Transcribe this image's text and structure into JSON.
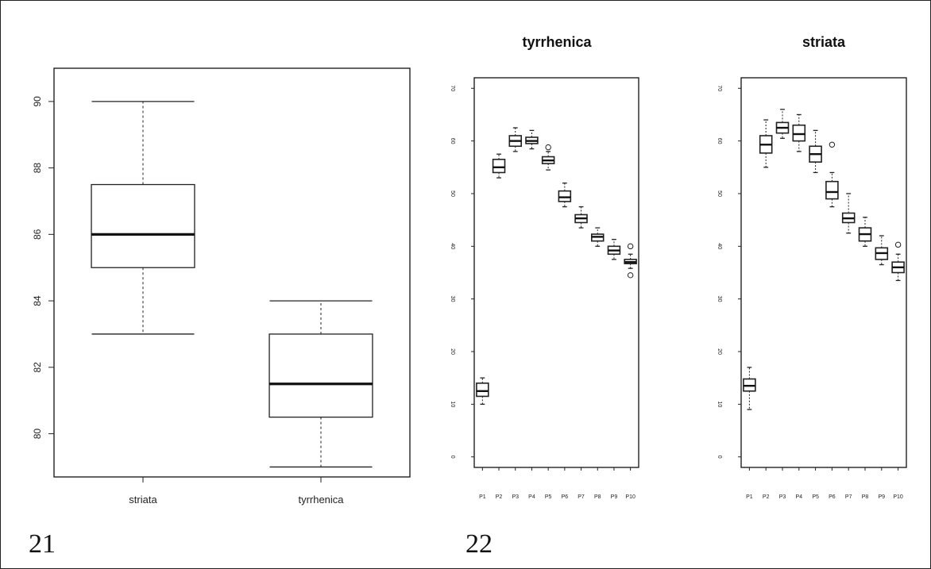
{
  "panel_labels": [
    "21",
    "22"
  ],
  "chart_data": [
    {
      "type": "boxplot",
      "title": "",
      "xlabel": "",
      "ylabel": "",
      "categories": [
        "striata",
        "tyrrhenica"
      ],
      "ylim": [
        78.7,
        91.0
      ],
      "yticks": [
        80,
        82,
        84,
        86,
        88,
        90
      ],
      "boxes": [
        {
          "name": "striata",
          "min": 83,
          "q1": 85,
          "median": 86,
          "q3": 87.5,
          "max": 90,
          "outliers": []
        },
        {
          "name": "tyrrhenica",
          "min": 79,
          "q1": 80.5,
          "median": 81.5,
          "q3": 83,
          "max": 84,
          "outliers": []
        }
      ]
    },
    {
      "type": "boxplot",
      "title": "tyrrhenica",
      "xlabel": "",
      "ylabel": "",
      "categories": [
        "P1",
        "P2",
        "P3",
        "P4",
        "P5",
        "P6",
        "P7",
        "P8",
        "P9",
        "P10"
      ],
      "ylim": [
        -2,
        72
      ],
      "yticks": [
        "0",
        "10",
        "20",
        "30",
        "40",
        "50",
        "60",
        "70"
      ],
      "boxes": [
        {
          "name": "P1",
          "min": 10,
          "q1": 11.5,
          "median": 12.5,
          "q3": 14,
          "max": 15,
          "outliers": []
        },
        {
          "name": "P2",
          "min": 53,
          "q1": 54,
          "median": 55,
          "q3": 56.5,
          "max": 57.5,
          "outliers": []
        },
        {
          "name": "P3",
          "min": 58,
          "q1": 59,
          "median": 60,
          "q3": 61,
          "max": 62.5,
          "outliers": []
        },
        {
          "name": "P4",
          "min": 58.5,
          "q1": 59.5,
          "median": 60,
          "q3": 60.7,
          "max": 62,
          "outliers": []
        },
        {
          "name": "P5",
          "min": 54.5,
          "q1": 55.7,
          "median": 56.3,
          "q3": 57,
          "max": 58,
          "outliers": [
            58.8
          ]
        },
        {
          "name": "P6",
          "min": 47.5,
          "q1": 48.5,
          "median": 49.3,
          "q3": 50.5,
          "max": 52,
          "outliers": []
        },
        {
          "name": "P7",
          "min": 43.5,
          "q1": 44.5,
          "median": 45.3,
          "q3": 46,
          "max": 47.5,
          "outliers": []
        },
        {
          "name": "P8",
          "min": 40,
          "q1": 41,
          "median": 41.8,
          "q3": 42.3,
          "max": 43.5,
          "outliers": []
        },
        {
          "name": "P9",
          "min": 37.5,
          "q1": 38.5,
          "median": 39.2,
          "q3": 40,
          "max": 41.3,
          "outliers": []
        },
        {
          "name": "P10",
          "min": 35.8,
          "q1": 36.7,
          "median": 37,
          "q3": 37.5,
          "max": 38.5,
          "outliers": [
            40,
            34.5
          ]
        }
      ]
    },
    {
      "type": "boxplot",
      "title": "striata",
      "xlabel": "",
      "ylabel": "",
      "categories": [
        "P1",
        "P2",
        "P3",
        "P4",
        "P5",
        "P6",
        "P7",
        "P8",
        "P9",
        "P10"
      ],
      "ylim": [
        -2,
        72
      ],
      "yticks": [
        "0",
        "10",
        "20",
        "30",
        "40",
        "50",
        "60",
        "70"
      ],
      "boxes": [
        {
          "name": "P1",
          "min": 9,
          "q1": 12.5,
          "median": 13.5,
          "q3": 14.8,
          "max": 17,
          "outliers": []
        },
        {
          "name": "P2",
          "min": 55,
          "q1": 57.7,
          "median": 59.3,
          "q3": 61,
          "max": 64,
          "outliers": []
        },
        {
          "name": "P3",
          "min": 60.5,
          "q1": 61.5,
          "median": 62.5,
          "q3": 63.5,
          "max": 66,
          "outliers": []
        },
        {
          "name": "P4",
          "min": 58,
          "q1": 60,
          "median": 61.3,
          "q3": 63,
          "max": 65,
          "outliers": []
        },
        {
          "name": "P5",
          "min": 54,
          "q1": 56,
          "median": 57.5,
          "q3": 59,
          "max": 62,
          "outliers": []
        },
        {
          "name": "P6",
          "min": 47.5,
          "q1": 49,
          "median": 50.3,
          "q3": 52.3,
          "max": 54,
          "outliers": [
            59.3
          ]
        },
        {
          "name": "P7",
          "min": 42.5,
          "q1": 44.5,
          "median": 45.3,
          "q3": 46.3,
          "max": 50,
          "outliers": []
        },
        {
          "name": "P8",
          "min": 40,
          "q1": 41,
          "median": 42.3,
          "q3": 43.5,
          "max": 45.5,
          "outliers": []
        },
        {
          "name": "P9",
          "min": 36.5,
          "q1": 37.5,
          "median": 38.7,
          "q3": 39.7,
          "max": 42,
          "outliers": []
        },
        {
          "name": "P10",
          "min": 33.5,
          "q1": 35,
          "median": 36,
          "q3": 37,
          "max": 38.5,
          "outliers": [
            40.3
          ]
        }
      ]
    }
  ]
}
